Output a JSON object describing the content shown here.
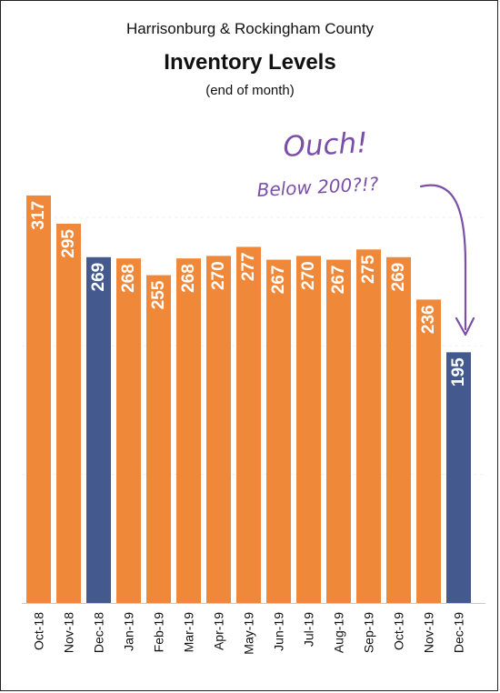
{
  "chart_data": {
    "type": "bar",
    "title": "Inventory Levels",
    "header_line": "Harrisonburg & Rockingham County",
    "subtitle": "(end of month)",
    "categories": [
      "Oct-18",
      "Nov-18",
      "Dec-18",
      "Jan-19",
      "Feb-19",
      "Mar-19",
      "Apr-19",
      "May-19",
      "Jun-19",
      "Jul-19",
      "Aug-19",
      "Sep-19",
      "Oct-19",
      "Nov-19",
      "Dec-19"
    ],
    "values": [
      317,
      295,
      269,
      268,
      255,
      268,
      270,
      277,
      267,
      270,
      267,
      275,
      269,
      236,
      195
    ],
    "highlighted_categories": [
      "Dec-18",
      "Dec-19"
    ],
    "colors": {
      "default_bar": "#f0883a",
      "highlight_bar": "#445a8f",
      "annotation": "#7b4fa8"
    },
    "ylim": [
      0,
      370
    ],
    "grid": true,
    "annotation": {
      "line1": "Ouch!",
      "line2": "Below 200?!?",
      "target_category": "Dec-19"
    }
  }
}
